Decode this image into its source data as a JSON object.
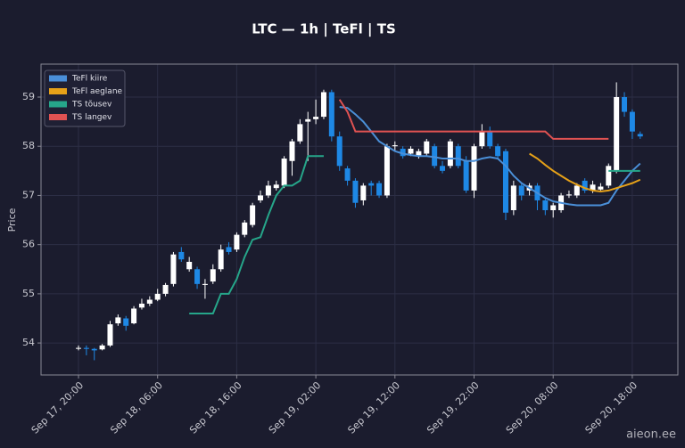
{
  "chart_data": {
    "type": "candlestick",
    "title": "LTC — 1h  |  TeFl  |  TS",
    "ylabel": "Price",
    "watermark": "aieon.ee",
    "x": [
      "Sep 17, 20:00",
      "Sep 17, 21:00",
      "Sep 17, 22:00",
      "Sep 17, 23:00",
      "Sep 18, 00:00",
      "Sep 18, 01:00",
      "Sep 18, 02:00",
      "Sep 18, 03:00",
      "Sep 18, 04:00",
      "Sep 18, 05:00",
      "Sep 18, 06:00",
      "Sep 18, 07:00",
      "Sep 18, 08:00",
      "Sep 18, 09:00",
      "Sep 18, 10:00",
      "Sep 18, 11:00",
      "Sep 18, 12:00",
      "Sep 18, 13:00",
      "Sep 18, 14:00",
      "Sep 18, 15:00",
      "Sep 18, 16:00",
      "Sep 18, 17:00",
      "Sep 18, 18:00",
      "Sep 18, 19:00",
      "Sep 18, 20:00",
      "Sep 18, 21:00",
      "Sep 18, 22:00",
      "Sep 18, 23:00",
      "Sep 19, 00:00",
      "Sep 19, 01:00",
      "Sep 19, 02:00",
      "Sep 19, 03:00",
      "Sep 19, 04:00",
      "Sep 19, 05:00",
      "Sep 19, 06:00",
      "Sep 19, 07:00",
      "Sep 19, 08:00",
      "Sep 19, 09:00",
      "Sep 19, 10:00",
      "Sep 19, 11:00",
      "Sep 19, 12:00",
      "Sep 19, 13:00",
      "Sep 19, 14:00",
      "Sep 19, 15:00",
      "Sep 19, 16:00",
      "Sep 19, 17:00",
      "Sep 19, 18:00",
      "Sep 19, 19:00",
      "Sep 19, 20:00",
      "Sep 19, 21:00",
      "Sep 19, 22:00",
      "Sep 19, 23:00",
      "Sep 20, 00:00",
      "Sep 20, 01:00",
      "Sep 20, 02:00",
      "Sep 20, 03:00",
      "Sep 20, 04:00",
      "Sep 20, 05:00",
      "Sep 20, 06:00",
      "Sep 20, 07:00",
      "Sep 20, 08:00",
      "Sep 20, 09:00",
      "Sep 20, 10:00",
      "Sep 20, 11:00",
      "Sep 20, 12:00",
      "Sep 20, 13:00",
      "Sep 20, 14:00",
      "Sep 20, 15:00",
      "Sep 20, 16:00",
      "Sep 20, 17:00",
      "Sep 20, 18:00",
      "Sep 20, 19:00"
    ],
    "open": [
      53.9,
      53.9,
      53.88,
      53.87,
      53.95,
      54.4,
      54.5,
      54.4,
      54.72,
      54.8,
      54.88,
      55.0,
      55.2,
      55.85,
      55.5,
      55.5,
      55.18,
      55.25,
      55.5,
      55.95,
      55.9,
      56.2,
      56.4,
      56.9,
      57.0,
      57.15,
      57.2,
      57.7,
      58.1,
      58.5,
      58.55,
      58.6,
      59.1,
      58.2,
      57.55,
      57.3,
      56.9,
      57.25,
      57.25,
      57.0,
      58.0,
      57.95,
      57.85,
      57.8,
      57.85,
      58.0,
      57.6,
      57.6,
      58.0,
      57.7,
      57.1,
      58.0,
      58.3,
      58.0,
      57.9,
      56.7,
      57.2,
      57.1,
      57.2,
      56.9,
      56.7,
      56.7,
      57.0,
      57.0,
      57.3,
      57.1,
      57.12,
      57.2,
      57.5,
      59.0,
      58.7,
      58.25
    ],
    "high": [
      53.95,
      53.95,
      53.9,
      53.98,
      54.45,
      54.58,
      54.55,
      54.75,
      54.9,
      54.95,
      55.1,
      55.22,
      55.85,
      55.95,
      55.75,
      55.55,
      55.3,
      55.6,
      56.0,
      56.05,
      56.25,
      56.5,
      56.85,
      57.1,
      57.3,
      57.3,
      57.8,
      58.15,
      58.55,
      58.7,
      58.95,
      59.15,
      59.15,
      58.3,
      57.6,
      57.35,
      57.25,
      57.3,
      57.3,
      58.05,
      58.1,
      58.0,
      58.0,
      57.95,
      58.15,
      58.05,
      57.7,
      58.15,
      58.05,
      57.8,
      58.05,
      58.45,
      58.4,
      58.05,
      57.95,
      57.3,
      57.25,
      57.25,
      57.25,
      56.95,
      56.85,
      57.05,
      57.1,
      57.25,
      57.35,
      57.3,
      57.25,
      57.65,
      59.3,
      59.1,
      58.75,
      58.3
    ],
    "low": [
      53.85,
      53.75,
      53.65,
      53.85,
      53.92,
      54.35,
      54.25,
      54.38,
      54.68,
      54.75,
      54.85,
      54.95,
      55.15,
      55.65,
      55.45,
      55.1,
      54.9,
      55.2,
      55.45,
      55.8,
      55.85,
      56.15,
      56.35,
      56.85,
      56.95,
      57.1,
      57.15,
      57.4,
      58.05,
      57.7,
      58.45,
      58.55,
      58.1,
      57.5,
      57.2,
      56.75,
      56.8,
      57.0,
      56.95,
      56.95,
      57.9,
      57.75,
      57.8,
      57.75,
      57.8,
      57.55,
      57.45,
      57.55,
      57.55,
      57.05,
      56.95,
      57.95,
      57.95,
      57.75,
      56.5,
      56.6,
      56.9,
      57.0,
      56.7,
      56.6,
      56.55,
      56.65,
      56.95,
      56.95,
      57.05,
      57.05,
      57.1,
      57.15,
      57.45,
      58.6,
      58.15,
      58.15
    ],
    "close": [
      53.9,
      53.88,
      53.85,
      53.95,
      54.38,
      54.52,
      54.35,
      54.7,
      54.8,
      54.88,
      55.0,
      55.18,
      55.8,
      55.7,
      55.65,
      55.2,
      55.2,
      55.5,
      55.9,
      55.85,
      56.2,
      56.45,
      56.8,
      57.0,
      57.2,
      57.22,
      57.75,
      58.1,
      58.45,
      58.55,
      58.6,
      59.1,
      58.2,
      57.6,
      57.3,
      56.85,
      57.2,
      57.2,
      57.0,
      58.0,
      58.02,
      57.8,
      57.95,
      57.9,
      58.1,
      57.6,
      57.5,
      58.1,
      57.6,
      57.1,
      58.0,
      58.3,
      58.0,
      57.8,
      56.65,
      57.2,
      57.0,
      57.2,
      56.9,
      56.7,
      56.8,
      57.0,
      57.02,
      57.2,
      57.1,
      57.22,
      57.18,
      57.6,
      59.0,
      58.7,
      58.3,
      58.2
    ],
    "up_color": "#ffffff",
    "down_color": "#1e88e5",
    "series": [
      {
        "name": "TeFl kiire",
        "color": "#4a8fd8",
        "values": [
          null,
          null,
          null,
          null,
          null,
          null,
          null,
          null,
          null,
          null,
          null,
          null,
          null,
          null,
          null,
          null,
          null,
          null,
          null,
          null,
          null,
          null,
          null,
          null,
          null,
          null,
          null,
          null,
          null,
          null,
          null,
          null,
          null,
          58.8,
          58.78,
          58.65,
          58.5,
          58.3,
          58.1,
          58.0,
          57.9,
          57.85,
          57.82,
          57.8,
          57.8,
          57.78,
          57.75,
          57.75,
          57.75,
          57.7,
          57.7,
          57.75,
          57.78,
          57.75,
          57.6,
          57.4,
          57.25,
          57.15,
          57.05,
          56.95,
          56.88,
          56.85,
          56.82,
          56.8,
          56.8,
          56.8,
          56.8,
          56.85,
          57.1,
          57.3,
          57.5,
          57.65
        ]
      },
      {
        "name": "TeFl aeglane",
        "color": "#e6a118",
        "values": [
          null,
          null,
          null,
          null,
          null,
          null,
          null,
          null,
          null,
          null,
          null,
          null,
          null,
          null,
          null,
          null,
          null,
          null,
          null,
          null,
          null,
          null,
          null,
          null,
          null,
          null,
          null,
          null,
          null,
          null,
          null,
          null,
          null,
          null,
          null,
          null,
          null,
          null,
          null,
          null,
          null,
          null,
          null,
          null,
          null,
          null,
          null,
          null,
          null,
          null,
          null,
          null,
          null,
          null,
          null,
          null,
          null,
          57.85,
          57.75,
          57.62,
          57.5,
          57.4,
          57.3,
          57.22,
          57.15,
          57.1,
          57.08,
          57.1,
          57.15,
          57.2,
          57.25,
          57.32
        ]
      },
      {
        "name": "TS tõusev",
        "color": "#26a68a",
        "values": [
          null,
          null,
          null,
          null,
          null,
          null,
          null,
          null,
          null,
          null,
          null,
          null,
          null,
          null,
          54.6,
          54.6,
          54.6,
          54.6,
          55.0,
          55.0,
          55.3,
          55.75,
          56.1,
          56.15,
          56.6,
          57.0,
          57.2,
          57.2,
          57.3,
          57.8,
          57.8,
          57.8,
          null,
          null,
          null,
          null,
          null,
          null,
          null,
          null,
          null,
          null,
          null,
          null,
          null,
          null,
          null,
          null,
          null,
          null,
          null,
          null,
          null,
          null,
          null,
          null,
          null,
          null,
          null,
          null,
          null,
          null,
          null,
          null,
          null,
          null,
          null,
          57.5,
          57.5,
          57.5,
          57.5,
          57.5
        ]
      },
      {
        "name": "TS langev",
        "color": "#e05252",
        "values": [
          null,
          null,
          null,
          null,
          null,
          null,
          null,
          null,
          null,
          null,
          null,
          null,
          null,
          null,
          null,
          null,
          null,
          null,
          null,
          null,
          null,
          null,
          null,
          null,
          null,
          null,
          null,
          null,
          null,
          null,
          null,
          null,
          null,
          58.95,
          58.7,
          58.3,
          58.3,
          58.3,
          58.3,
          58.3,
          58.3,
          58.3,
          58.3,
          58.3,
          58.3,
          58.3,
          58.3,
          58.3,
          58.3,
          58.3,
          58.3,
          58.3,
          58.3,
          58.3,
          58.3,
          58.3,
          58.3,
          58.3,
          58.3,
          58.3,
          58.15,
          58.15,
          58.15,
          58.15,
          58.15,
          58.15,
          58.15,
          58.15,
          null,
          null,
          null,
          null
        ]
      }
    ],
    "xticks": [
      "Sep 17, 20:00",
      "Sep 18, 06:00",
      "Sep 18, 16:00",
      "Sep 19, 02:00",
      "Sep 19, 12:00",
      "Sep 19, 22:00",
      "Sep 20, 08:00",
      "Sep 20, 18:00"
    ],
    "ylim": [
      53.35,
      59.67
    ],
    "yticks": [
      54,
      55,
      56,
      57,
      58,
      59
    ],
    "grid": true,
    "legend": "upper left"
  }
}
